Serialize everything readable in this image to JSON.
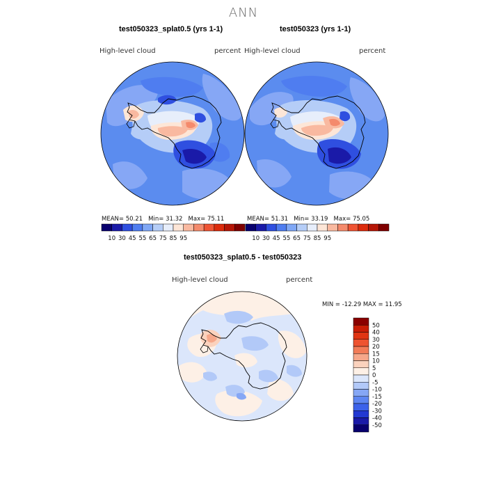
{
  "figure": {
    "title": "ANN"
  },
  "panels": [
    {
      "title": "test050323_splat0.5 (yrs 1-1)",
      "variable": "High-level cloud",
      "units": "percent",
      "stats": {
        "mean_label": "MEAN=",
        "mean": "50.21",
        "min_label": "Min=",
        "min": "31.32",
        "max_label": "Max=",
        "max": "75.11"
      }
    },
    {
      "title": "test050323 (yrs 1-1)",
      "variable": "High-level cloud",
      "units": "percent",
      "stats": {
        "mean_label": "MEAN=",
        "mean": "51.31",
        "min_label": "Min=",
        "min": "33.19",
        "max_label": "Max=",
        "max": "75.05"
      }
    },
    {
      "title": "test050323_splat0.5 - test050323",
      "variable": "High-level cloud",
      "units": "percent",
      "stats": {
        "text": "MIN = -12.29  MAX =  11.95"
      }
    }
  ],
  "colorbars": {
    "abs": {
      "colors": [
        "#08006e",
        "#1a1aa8",
        "#2f4fe0",
        "#4f7df0",
        "#7fa7f5",
        "#b5cdf7",
        "#e7eefb",
        "#fde6d7",
        "#f9b9a0",
        "#f48a6c",
        "#ef5434",
        "#dc2b0c",
        "#b51506",
        "#7f0000"
      ],
      "tick_labels": [
        "10",
        "30",
        "45",
        "55",
        "65",
        "75",
        "85",
        "95"
      ]
    },
    "diff": {
      "colors": [
        "#08006e",
        "#1a1aa8",
        "#2238d2",
        "#3c62ea",
        "#5e86f2",
        "#86a7f5",
        "#b2c9f8",
        "#dbe6fb",
        "#fdf0e6",
        "#fbd2bd",
        "#f6a78a",
        "#f27b57",
        "#ee5330",
        "#e03513",
        "#c91d06",
        "#8a0000"
      ],
      "tick_labels": [
        "50",
        "40",
        "30",
        "20",
        "15",
        "10",
        "5",
        "0",
        "-5",
        "-10",
        "-15",
        "-20",
        "-30",
        "-40",
        "-50"
      ]
    }
  }
}
